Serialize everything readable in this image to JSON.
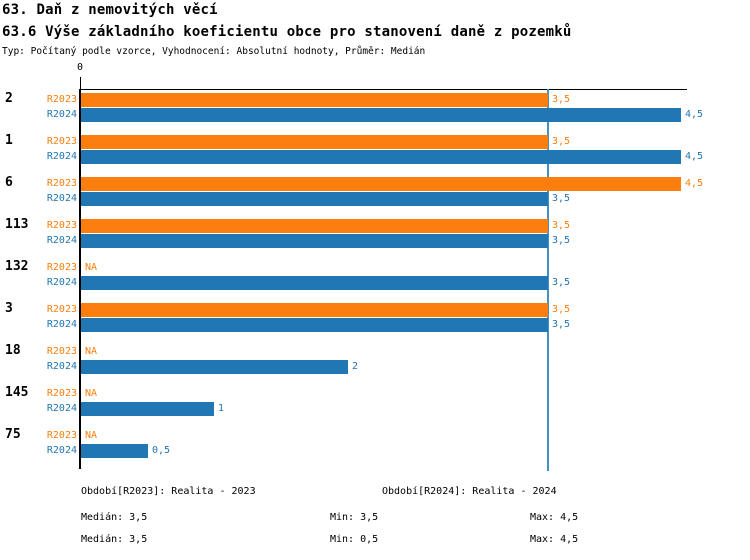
{
  "header": {
    "title": "63. Daň z nemovitých věcí",
    "subtitle": "63.6 Výše základního koeficientu obce pro stanovení daně z pozemků",
    "description": "Typ: Počítaný podle vzorce, Vyhodnocení: Absolutní hodnoty, Průměr: Medián"
  },
  "colors": {
    "r2023": "#FB7E0E",
    "r2024": "#2176B4",
    "axis": "#000000",
    "reference_line": "#4292C6",
    "category_label": "#000000",
    "background": "#FFFFFF"
  },
  "chart_data": {
    "type": "bar",
    "orientation": "horizontal",
    "title": "63.6 Výše základního koeficientu obce pro stanovení daně z pozemků",
    "categories": [
      "2",
      "1",
      "6",
      "113",
      "132",
      "3",
      "18",
      "145",
      "75"
    ],
    "series": [
      {
        "name": "R2023",
        "color_key": "r2023",
        "values": [
          3.5,
          3.5,
          4.5,
          3.5,
          null,
          3.5,
          null,
          null,
          null
        ],
        "labels": [
          "3,5",
          "3,5",
          "4,5",
          "3,5",
          "NA",
          "3,5",
          "NA",
          "NA",
          "NA"
        ]
      },
      {
        "name": "R2024",
        "color_key": "r2024",
        "values": [
          4.5,
          4.5,
          3.5,
          3.5,
          3.5,
          3.5,
          2,
          1,
          0.5
        ],
        "labels": [
          "4,5",
          "4,5",
          "3,5",
          "3,5",
          "3,5",
          "3,5",
          "2",
          "1",
          "0,5"
        ]
      }
    ],
    "xlim": [
      0,
      4.54
    ],
    "x_ticks": [
      {
        "value": 0,
        "label": "0"
      }
    ],
    "reference_line": {
      "value": 3.5,
      "color": "#4292C6"
    },
    "missing_label": "NA",
    "grid": false,
    "legend_position": "bottom"
  },
  "legend": {
    "r2023": "Období[R2023]: Realita - 2023",
    "r2024": "Období[R2024]: Realita - 2024"
  },
  "stats": {
    "r2023": {
      "median": "Medián: 3,5",
      "min": "Min: 3,5",
      "max": "Max: 4,5"
    },
    "r2024": {
      "median": "Medián: 3,5",
      "min": "Min: 0,5",
      "max": "Max: 4,5"
    }
  }
}
